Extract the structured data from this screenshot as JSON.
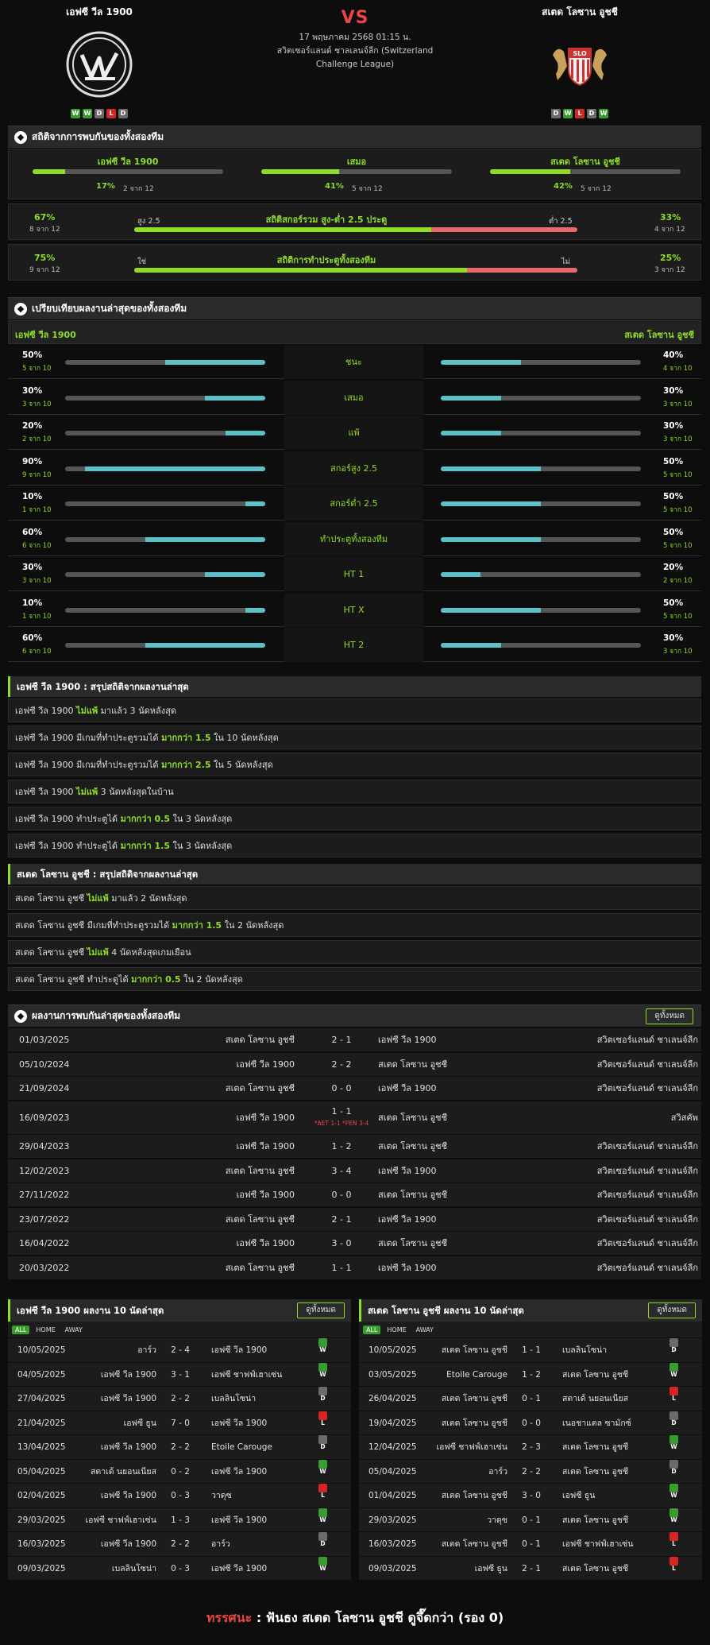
{
  "match": {
    "home": "เอฟซี วีล 1900",
    "away": "สเตด โลซาน อูชชี",
    "vs": "VS",
    "datetime": "17 พฤษภาคม 2568 01:15 น.",
    "league": "สวิตเซอร์แลนด์ ชาลเลนจ์ลีก (Switzerland Challenge League)",
    "home_form": [
      "W",
      "W",
      "D",
      "L",
      "D"
    ],
    "away_form": [
      "D",
      "W",
      "L",
      "D",
      "W"
    ]
  },
  "h2h_stats": {
    "title": "สถิติจากการพบกันของทั้งสองทีม",
    "cols": [
      {
        "label": "เอฟซี วีล 1900",
        "pct": "17%",
        "sub": "2 จาก 12",
        "value": 0.17
      },
      {
        "label": "เสมอ",
        "pct": "41%",
        "sub": "5 จาก 12",
        "value": 0.41
      },
      {
        "label": "สเตด โลซาน อูชชี",
        "pct": "42%",
        "sub": "5 จาก 12",
        "value": 0.42
      }
    ],
    "overunder": {
      "title": "สถิติสกอร์รวม สูง-ต่ำ 2.5 ประตู",
      "left_label": "สูง 2.5",
      "right_label": "ต่ำ 2.5",
      "lpct": "67%",
      "lsub": "8 จาก 12",
      "rpct": "33%",
      "rsub": "4 จาก 12",
      "value": 0.67
    },
    "btts": {
      "title": "สถิติการทำประตูทั้งสองทีม",
      "left_label": "ใช่",
      "right_label": "ไม่",
      "lpct": "75%",
      "lsub": "9 จาก 12",
      "rpct": "25%",
      "rsub": "3 จาก 12",
      "value": 0.75
    }
  },
  "compare": {
    "title": "เปรียบเทียบผลงานล่าสุดของทั้งสองทีม",
    "home": "เอฟซี วีล 1900",
    "away": "สเตด โลซาน อูชชี",
    "rows": [
      {
        "label": "ชนะ",
        "lp": "50%",
        "ls": "5 จาก 10",
        "lv": 0.5,
        "rp": "40%",
        "rs": "4 จาก 10",
        "rv": 0.4
      },
      {
        "label": "เสมอ",
        "lp": "30%",
        "ls": "3 จาก 10",
        "lv": 0.3,
        "rp": "30%",
        "rs": "3 จาก 10",
        "rv": 0.3
      },
      {
        "label": "แพ้",
        "lp": "20%",
        "ls": "2 จาก 10",
        "lv": 0.2,
        "rp": "30%",
        "rs": "3 จาก 10",
        "rv": 0.3
      },
      {
        "label": "สกอร์สูง 2.5",
        "lp": "90%",
        "ls": "9 จาก 10",
        "lv": 0.9,
        "rp": "50%",
        "rs": "5 จาก 10",
        "rv": 0.5
      },
      {
        "label": "สกอร์ต่ำ 2.5",
        "lp": "10%",
        "ls": "1 จาก 10",
        "lv": 0.1,
        "rp": "50%",
        "rs": "5 จาก 10",
        "rv": 0.5
      },
      {
        "label": "ทำประตูทั้งสองทีม",
        "lp": "60%",
        "ls": "6 จาก 10",
        "lv": 0.6,
        "rp": "50%",
        "rs": "5 จาก 10",
        "rv": 0.5
      },
      {
        "label": "HT 1",
        "lp": "30%",
        "ls": "3 จาก 10",
        "lv": 0.3,
        "rp": "20%",
        "rs": "2 จาก 10",
        "rv": 0.2
      },
      {
        "label": "HT X",
        "lp": "10%",
        "ls": "1 จาก 10",
        "lv": 0.1,
        "rp": "50%",
        "rs": "5 จาก 10",
        "rv": 0.5
      },
      {
        "label": "HT 2",
        "lp": "60%",
        "ls": "6 จาก 10",
        "lv": 0.6,
        "rp": "30%",
        "rs": "3 จาก 10",
        "rv": 0.3
      }
    ]
  },
  "home_summary": {
    "title": "เอฟซี วีล 1900 : สรุปสถิติจากผลงานล่าสุด",
    "rows": [
      [
        "เอฟซี วีล 1900 ",
        "ไม่แพ้",
        " มาแล้ว 3 นัดหลังสุด"
      ],
      [
        "เอฟซี วีล 1900  มีเกมที่ทำประตูรวมได้ ",
        "มากกว่า 1.5",
        " ใน 10 นัดหลังสุด"
      ],
      [
        "เอฟซี วีล 1900  มีเกมที่ทำประตูรวมได้ ",
        "มากกว่า 2.5",
        " ใน 5 นัดหลังสุด"
      ],
      [
        "เอฟซี วีล 1900 ",
        "ไม่แพ้",
        " 3  นัดหลังสุดในบ้าน"
      ],
      [
        "เอฟซี วีล 1900  ทำประตูได้ ",
        "มากกว่า 0.5",
        " ใน 3 นัดหลังสุด"
      ],
      [
        "เอฟซี วีล 1900  ทำประตูได้ ",
        "มากกว่า 1.5",
        " ใน 3 นัดหลังสุด"
      ]
    ]
  },
  "away_summary": {
    "title": "สเตด โลซาน อูชชี : สรุปสถิติจากผลงานล่าสุด",
    "rows": [
      [
        "สเตด โลซาน อูชชี ",
        "ไม่แพ้",
        " มาแล้ว 2 นัดหลังสุด"
      ],
      [
        "สเตด โลซาน อูชชี  มีเกมที่ทำประตูรวมได้ ",
        "มากกว่า 1.5",
        " ใน 2 นัดหลังสุด"
      ],
      [
        "สเตด โลซาน อูชชี ",
        "ไม่แพ้",
        " 4  นัดหลังสุดเกมเยือน"
      ],
      [
        "สเตด โลซาน อูชชี  ทำประตูได้ ",
        "มากกว่า 0.5",
        " ใน 2 นัดหลังสุด"
      ]
    ]
  },
  "h2h_results": {
    "title": "ผลงานการพบกันล่าสุดของทั้งสองทีม",
    "view_all": "ดูทั้งหมด",
    "rows": [
      {
        "date": "01/03/2025",
        "home": "สเตด โลซาน อูชชี",
        "score": "2 - 1",
        "away": "เอฟซี วีล 1900",
        "comp": "สวิตเซอร์แลนด์ ชาเลนจ์ลีก",
        "note": ""
      },
      {
        "date": "05/10/2024",
        "home": "เอฟซี วีล 1900",
        "score": "2 - 2",
        "away": "สเตด โลซาน อูชชี",
        "comp": "สวิตเซอร์แลนด์ ชาเลนจ์ลีก",
        "note": ""
      },
      {
        "date": "21/09/2024",
        "home": "สเตด โลซาน อูชชี",
        "score": "0 - 0",
        "away": "เอฟซี วีล 1900",
        "comp": "สวิตเซอร์แลนด์ ชาเลนจ์ลีก",
        "note": ""
      },
      {
        "date": "16/09/2023",
        "home": "เอฟซี วีล 1900",
        "score": "1 - 1",
        "away": "สเตด โลซาน อูชชี",
        "comp": "สวิสคัพ",
        "note": "*AET 1-1 *PEN 3-4"
      },
      {
        "date": "29/04/2023",
        "home": "เอฟซี วีล 1900",
        "score": "1 - 2",
        "away": "สเตด โลซาน อูชชี",
        "comp": "สวิตเซอร์แลนด์ ชาเลนจ์ลีก",
        "note": ""
      },
      {
        "date": "12/02/2023",
        "home": "สเตด โลซาน อูชชี",
        "score": "3 - 4",
        "away": "เอฟซี วีล 1900",
        "comp": "สวิตเซอร์แลนด์ ชาเลนจ์ลีก",
        "note": ""
      },
      {
        "date": "27/11/2022",
        "home": "เอฟซี วีล 1900",
        "score": "0 - 0",
        "away": "สเตด โลซาน อูชชี",
        "comp": "สวิตเซอร์แลนด์ ชาเลนจ์ลีก",
        "note": ""
      },
      {
        "date": "23/07/2022",
        "home": "สเตด โลซาน อูชชี",
        "score": "2 - 1",
        "away": "เอฟซี วีล 1900",
        "comp": "สวิตเซอร์แลนด์ ชาเลนจ์ลีก",
        "note": ""
      },
      {
        "date": "16/04/2022",
        "home": "เอฟซี วีล 1900",
        "score": "3 - 0",
        "away": "สเตด โลซาน อูชชี",
        "comp": "สวิตเซอร์แลนด์ ชาเลนจ์ลีก",
        "note": ""
      },
      {
        "date": "20/03/2022",
        "home": "สเตด โลซาน อูชชี",
        "score": "1 - 1",
        "away": "เอฟซี วีล 1900",
        "comp": "สวิตเซอร์แลนด์ ชาเลนจ์ลีก",
        "note": ""
      }
    ]
  },
  "home_last10": {
    "title": "เอฟซี วีล 1900 ผลงาน 10 นัดล่าสุด",
    "view_all": "ดูทั้งหมด",
    "tabs": [
      "ALL",
      "HOME",
      "AWAY"
    ],
    "rows": [
      {
        "date": "10/05/2025",
        "home": "อาร์ว",
        "score": "2 - 4",
        "away": "เอฟซี วีล 1900",
        "r": "W"
      },
      {
        "date": "04/05/2025",
        "home": "เอฟซี วีล 1900",
        "score": "3 - 1",
        "away": "เอฟซี ชาฟฟ์เฮาเซ่น",
        "r": "W"
      },
      {
        "date": "27/04/2025",
        "home": "เอฟซี วีล 1900",
        "score": "2 - 2",
        "away": "เบลลินโซน่า",
        "r": "D"
      },
      {
        "date": "21/04/2025",
        "home": "เอฟซี ธูน",
        "score": "7 - 0",
        "away": "เอฟซี วีล 1900",
        "r": "L"
      },
      {
        "date": "13/04/2025",
        "home": "เอฟซี วีล 1900",
        "score": "2 - 2",
        "away": "Etoile Carouge",
        "r": "D"
      },
      {
        "date": "05/04/2025",
        "home": "สตาเด้ นยอนเนียส",
        "score": "0 - 2",
        "away": "เอฟซี วีล 1900",
        "r": "W"
      },
      {
        "date": "02/04/2025",
        "home": "เอฟซี วีล 1900",
        "score": "0 - 3",
        "away": "วาดุซ",
        "r": "L"
      },
      {
        "date": "29/03/2025",
        "home": "เอฟซี ชาฟฟ์เฮาเซ่น",
        "score": "1 - 3",
        "away": "เอฟซี วีล 1900",
        "r": "W"
      },
      {
        "date": "16/03/2025",
        "home": "เอฟซี วีล 1900",
        "score": "2 - 2",
        "away": "อาร์ว",
        "r": "D"
      },
      {
        "date": "09/03/2025",
        "home": "เบลลินโซน่า",
        "score": "0 - 3",
        "away": "เอฟซี วีล 1900",
        "r": "W"
      }
    ]
  },
  "away_last10": {
    "title": "สเตด โลซาน อูชชี ผลงาน 10 นัดล่าสุด",
    "view_all": "ดูทั้งหมด",
    "tabs": [
      "ALL",
      "HOME",
      "AWAY"
    ],
    "rows": [
      {
        "date": "10/05/2025",
        "home": "สเตด โลซาน อูชชี",
        "score": "1 - 1",
        "away": "เบลลินโซน่า",
        "r": "D"
      },
      {
        "date": "03/05/2025",
        "home": "Etoile Carouge",
        "score": "1 - 2",
        "away": "สเตด โลซาน อูชชี",
        "r": "W"
      },
      {
        "date": "26/04/2025",
        "home": "สเตด โลซาน อูชชี",
        "score": "0 - 1",
        "away": "สตาเด้ นยอนเนียส",
        "r": "L"
      },
      {
        "date": "19/04/2025",
        "home": "สเตด โลซาน อูชชี",
        "score": "0 - 0",
        "away": "เนอชาแตล ซามักซ์",
        "r": "D"
      },
      {
        "date": "12/04/2025",
        "home": "เอฟซี ชาฟฟ์เฮาเซ่น",
        "score": "2 - 3",
        "away": "สเตด โลซาน อูชชี",
        "r": "W"
      },
      {
        "date": "05/04/2025",
        "home": "อาร์ว",
        "score": "2 - 2",
        "away": "สเตด โลซาน อูชชี",
        "r": "D"
      },
      {
        "date": "01/04/2025",
        "home": "สเตด โลซาน อูชชี",
        "score": "3 - 0",
        "away": "เอฟซี ธูน",
        "r": "W"
      },
      {
        "date": "29/03/2025",
        "home": "วาดุซ",
        "score": "0 - 1",
        "away": "สเตด โลซาน อูชชี",
        "r": "W"
      },
      {
        "date": "16/03/2025",
        "home": "สเตด โลซาน อูชชี",
        "score": "0 - 1",
        "away": "เอฟซี ชาฟฟ์เฮาเซ่น",
        "r": "L"
      },
      {
        "date": "09/03/2025",
        "home": "เอฟซี ธูน",
        "score": "2 - 1",
        "away": "สเตด โลซาน อูชชี",
        "r": "L"
      }
    ]
  },
  "verdict": {
    "label": "ทรรศนะ",
    "sep": ":",
    "text": "ฟันธง สเตด โลซาน อูชชี ดูจึ๊ดกว่า (รอง 0)"
  },
  "colors": {
    "accent": "#8fdd2a",
    "teal": "#5bc0c8",
    "red": "#e86b6b",
    "win": "#3a9c2e",
    "draw": "#6b6b6b",
    "loss": "#d32626"
  }
}
